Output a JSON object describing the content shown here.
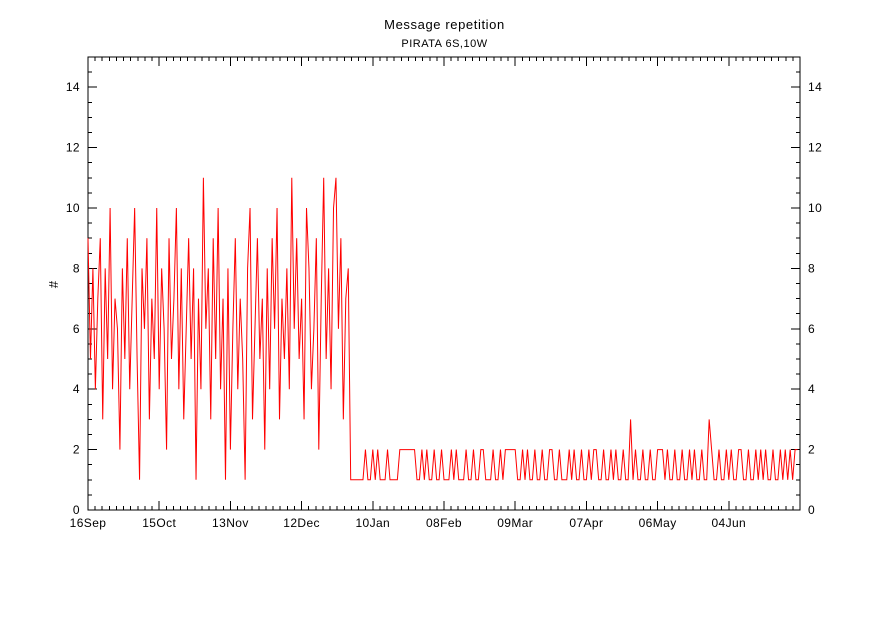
{
  "chart_data": {
    "type": "line",
    "title": "Message repetition",
    "subtitle": "PIRATA 6S,10W",
    "xlabel": "",
    "ylabel": "#",
    "ylim": [
      0,
      15
    ],
    "y_major_ticks": [
      0,
      2,
      4,
      6,
      8,
      10,
      12,
      14
    ],
    "y_minor_step": 0.5,
    "grid": false,
    "legend": null,
    "series_color": "#ff0000",
    "axis_color": "#000000",
    "x_axis": {
      "start_label": "16Sep",
      "range_days": [
        0,
        290
      ],
      "major_tick_days": [
        0,
        29,
        58,
        87,
        116,
        145,
        174,
        203,
        232,
        261
      ],
      "major_tick_labels": [
        "16Sep",
        "15Oct",
        "13Nov",
        "12Dec",
        "10Jan",
        "08Feb",
        "09Mar",
        "07Apr",
        "06May",
        "04Jun"
      ],
      "minor_step_days": 2.9
    },
    "values_note": "daily message-repetition count, one value per day starting 16Sep (day 0), estimated from plot",
    "values": [
      9,
      5,
      8,
      4,
      7,
      9,
      3,
      8,
      5,
      10,
      4,
      7,
      6,
      2,
      8,
      5,
      9,
      4,
      7,
      10,
      5,
      1,
      8,
      6,
      9,
      3,
      7,
      5,
      10,
      4,
      8,
      6,
      2,
      9,
      5,
      7,
      10,
      4,
      8,
      3,
      6,
      9,
      5,
      8,
      1,
      7,
      4,
      11,
      6,
      8,
      3,
      9,
      5,
      10,
      4,
      7,
      1,
      8,
      2,
      6,
      9,
      4,
      7,
      5,
      1,
      8,
      10,
      3,
      6,
      9,
      5,
      7,
      2,
      8,
      4,
      9,
      6,
      10,
      3,
      7,
      5,
      8,
      4,
      11,
      6,
      9,
      5,
      7,
      3,
      10,
      8,
      4,
      6,
      9,
      2,
      7,
      11,
      5,
      8,
      4,
      10,
      11,
      6,
      9,
      3,
      7,
      8,
      1,
      1,
      1,
      1,
      1,
      1,
      2,
      1,
      1,
      2,
      1,
      2,
      1,
      1,
      1,
      2,
      1,
      1,
      1,
      1,
      2,
      2,
      2,
      2,
      2,
      2,
      2,
      1,
      1,
      2,
      1,
      2,
      1,
      1,
      2,
      1,
      1,
      2,
      1,
      1,
      1,
      2,
      1,
      2,
      1,
      1,
      1,
      2,
      1,
      1,
      2,
      1,
      1,
      2,
      2,
      1,
      1,
      1,
      2,
      1,
      1,
      2,
      1,
      2,
      2,
      2,
      2,
      2,
      1,
      1,
      2,
      1,
      2,
      1,
      1,
      2,
      1,
      1,
      2,
      1,
      1,
      2,
      2,
      1,
      1,
      2,
      1,
      1,
      1,
      2,
      1,
      2,
      1,
      1,
      2,
      1,
      1,
      2,
      1,
      2,
      2,
      1,
      1,
      2,
      1,
      1,
      2,
      1,
      2,
      1,
      1,
      2,
      1,
      1,
      3,
      1,
      2,
      1,
      1,
      2,
      1,
      1,
      2,
      1,
      1,
      2,
      2,
      2,
      1,
      2,
      1,
      1,
      2,
      1,
      1,
      2,
      1,
      1,
      2,
      1,
      2,
      1,
      1,
      2,
      1,
      1,
      3,
      2,
      1,
      1,
      2,
      1,
      1,
      2,
      1,
      2,
      1,
      1,
      2,
      2,
      1,
      1,
      2,
      1,
      1,
      2,
      1,
      2,
      1,
      2,
      1,
      1,
      2,
      1,
      1,
      2,
      1,
      2,
      1,
      2,
      1,
      2,
      2
    ]
  }
}
